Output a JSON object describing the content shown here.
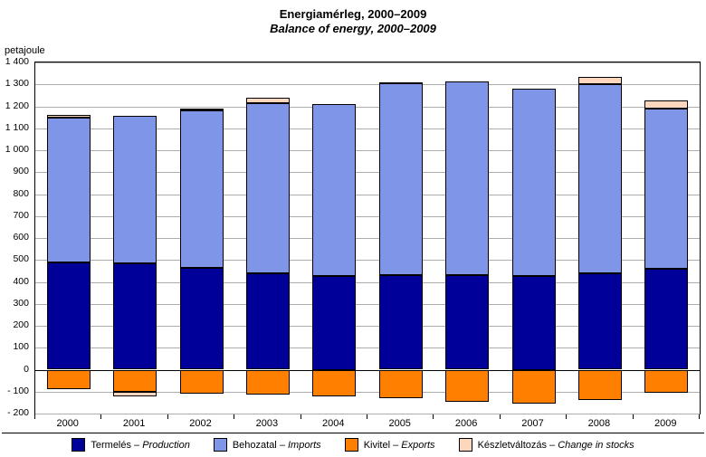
{
  "title": "Energiamérleg, 2000–2009",
  "subtitle": "Balance of energy, 2000–2009",
  "y_axis_unit": "petajoule",
  "legend_separator": " – ",
  "legend": {
    "items": [
      {
        "hu": "Termelés",
        "en": "Production"
      },
      {
        "hu": "Behozatal",
        "en": "Imports"
      },
      {
        "hu": "Kivitel",
        "en": "Exports"
      },
      {
        "hu": "Készletváltozás",
        "en": "Change in stocks"
      }
    ]
  },
  "chart_data": {
    "type": "bar",
    "stacked": true,
    "title": "Energiamérleg, 2000–2009 / Balance of energy, 2000–2009",
    "ylabel": "petajoule",
    "grid": true,
    "legend_position": "bottom",
    "ylim": [
      -200,
      1400
    ],
    "ytick_step": 100,
    "ytick_labels": [
      "1 400",
      "1 300",
      "1 200",
      "1 100",
      "1 000",
      "900",
      "800",
      "700",
      "600",
      "500",
      "400",
      "300",
      "200",
      "100",
      "0",
      "- 100",
      "- 200"
    ],
    "categories": [
      "2000",
      "2001",
      "2002",
      "2003",
      "2004",
      "2005",
      "2006",
      "2007",
      "2008",
      "2009"
    ],
    "series": [
      {
        "key": "production",
        "name": "Termelés – Production",
        "color": "#000099",
        "values": [
          490,
          483,
          465,
          438,
          425,
          430,
          430,
          425,
          440,
          460
        ]
      },
      {
        "key": "imports",
        "name": "Behozatal – Imports",
        "color": "#7f96e8",
        "values": [
          660,
          672,
          715,
          777,
          785,
          875,
          885,
          855,
          860,
          730
        ]
      },
      {
        "key": "exports",
        "name": "Kivitel – Exports",
        "color": "#ff8000",
        "values": [
          -90,
          -100,
          -110,
          -115,
          -120,
          -130,
          -145,
          -155,
          -140,
          -105
        ]
      },
      {
        "key": "change-in-stocks",
        "name": "Készletváltozás – Change in stocks",
        "color": "#fcd7bd",
        "values": [
          12,
          -20,
          8,
          25,
          0,
          5,
          0,
          0,
          35,
          35
        ]
      }
    ]
  }
}
